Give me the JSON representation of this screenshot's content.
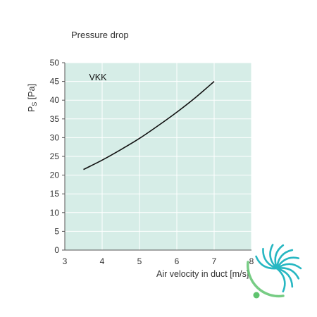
{
  "chart_data": {
    "type": "line",
    "title": "Pressure drop",
    "xlabel": "Air velocity in duct [m/s]",
    "ylabel_main": "P",
    "ylabel_sub": "S",
    "ylabel_unit": " [Pa]",
    "xlim": [
      3,
      8
    ],
    "ylim": [
      0,
      50
    ],
    "xticks": [
      3,
      4,
      5,
      6,
      7,
      8
    ],
    "yticks": [
      0,
      5,
      10,
      15,
      20,
      25,
      30,
      35,
      40,
      45,
      50
    ],
    "grid": true,
    "background_color": "#d6ede7",
    "grid_color": "#ffffff",
    "line_color": "#111111",
    "series": [
      {
        "name": "VKK",
        "x": [
          3.5,
          4.0,
          4.5,
          5.0,
          5.5,
          6.0,
          6.5,
          7.0
        ],
        "y": [
          21.5,
          24.0,
          26.8,
          29.8,
          33.2,
          36.8,
          40.7,
          45.0
        ]
      }
    ]
  },
  "logo": {
    "name": "fan-blade-logo",
    "primary_color": "#27b7c2",
    "secondary_color": "#5fc36e"
  }
}
